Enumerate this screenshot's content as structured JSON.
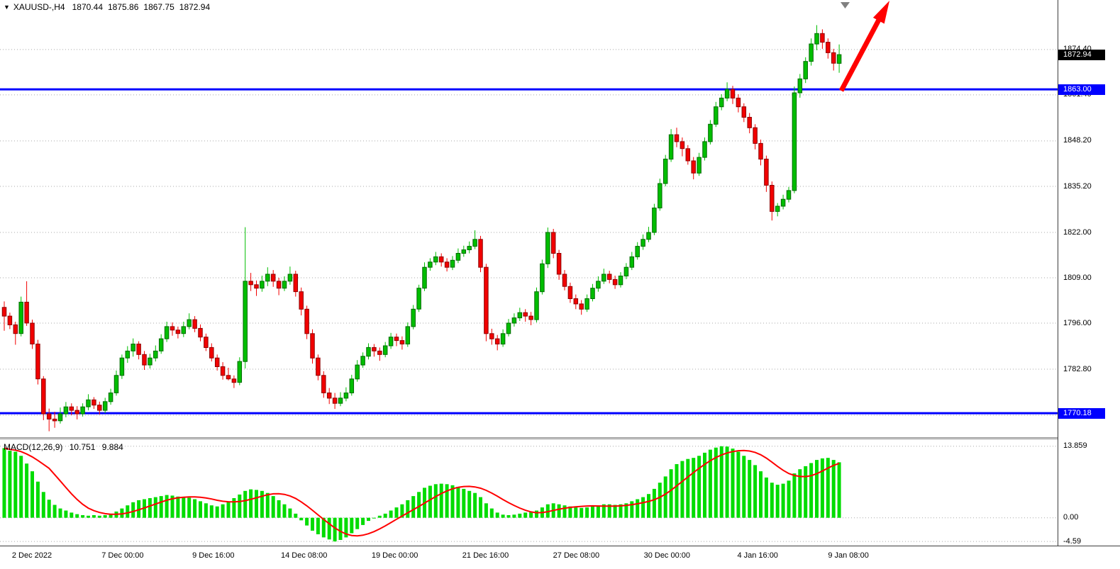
{
  "header": {
    "collapse_icon": "▼",
    "symbol_period": "XAUUSD-,H4",
    "open": "1870.44",
    "high": "1875.86",
    "low": "1867.75",
    "close": "1872.94"
  },
  "colors": {
    "bull": "#00BE00",
    "bull_border": "#006A00",
    "bear": "#F20000",
    "bear_border": "#8E0000",
    "level_line": "#0000FF",
    "current_badge": "#000000",
    "grid": "#A8A8A8",
    "macd": "#00DC00",
    "signal": "#FF0000",
    "arrow": "#FF0000"
  },
  "chart_data": [
    {
      "type": "candlestick",
      "symbol": "XAUUSD-",
      "timeframe": "H4",
      "current": {
        "open": 1870.44,
        "high": 1875.86,
        "low": 1867.75,
        "close": 1872.94
      },
      "hlines": [
        {
          "price": 1863.0
        },
        {
          "price": 1770.18
        }
      ],
      "y_axis": {
        "top": 1888.6,
        "bottom": 1763.3,
        "gridlines": [
          1874.4,
          1861.4,
          1848.2,
          1835.2,
          1822.0,
          1809.0,
          1796.0,
          1782.8,
          1769.6
        ]
      },
      "x_labels": [
        "2 Dec 2022",
        "7 Dec 00:00",
        "9 Dec 16:00",
        "14 Dec 08:00",
        "19 Dec 00:00",
        "21 Dec 16:00",
        "27 Dec 08:00",
        "30 Dec 00:00",
        "4 Jan 16:00",
        "9 Jan 08:00"
      ],
      "ohlc": [
        [
          1800.5,
          1802.2,
          1793.8,
          1798.0
        ],
        [
          1798.0,
          1799.0,
          1794.3,
          1795.5
        ],
        [
          1795.5,
          1796.4,
          1789.8,
          1793.0
        ],
        [
          1793.0,
          1803.6,
          1792.2,
          1802.0
        ],
        [
          1802.0,
          1808.0,
          1795.2,
          1796.0
        ],
        [
          1796.0,
          1797.0,
          1788.6,
          1790.0
        ],
        [
          1790.0,
          1791.2,
          1778.4,
          1780.0
        ],
        [
          1780.0,
          1780.8,
          1768.2,
          1770.0
        ],
        [
          1770.0,
          1771.5,
          1765.0,
          1768.5
        ],
        [
          1768.5,
          1770.6,
          1766.0,
          1768.0
        ],
        [
          1768.0,
          1771.8,
          1767.2,
          1770.0
        ],
        [
          1770.0,
          1773.4,
          1769.0,
          1772.0
        ],
        [
          1772.0,
          1773.0,
          1769.6,
          1771.0
        ],
        [
          1771.0,
          1772.2,
          1768.4,
          1770.0
        ],
        [
          1770.0,
          1773.0,
          1769.2,
          1772.0
        ],
        [
          1772.0,
          1775.6,
          1771.0,
          1774.0
        ],
        [
          1774.0,
          1774.8,
          1771.4,
          1772.5
        ],
        [
          1772.5,
          1773.5,
          1769.8,
          1771.0
        ],
        [
          1771.0,
          1774.6,
          1770.2,
          1773.5
        ],
        [
          1773.5,
          1777.2,
          1772.6,
          1776.0
        ],
        [
          1776.0,
          1782.4,
          1775.2,
          1781.0
        ],
        [
          1781.0,
          1787.0,
          1780.0,
          1786.0
        ],
        [
          1786.0,
          1789.4,
          1784.6,
          1788.0
        ],
        [
          1788.0,
          1791.6,
          1786.4,
          1790.0
        ],
        [
          1790.0,
          1790.8,
          1785.6,
          1787.0
        ],
        [
          1787.0,
          1788.0,
          1782.6,
          1784.0
        ],
        [
          1784.0,
          1787.2,
          1783.0,
          1786.0
        ],
        [
          1786.0,
          1789.6,
          1785.0,
          1788.0
        ],
        [
          1788.0,
          1792.8,
          1787.2,
          1791.5
        ],
        [
          1791.5,
          1796.4,
          1790.6,
          1795.0
        ],
        [
          1795.0,
          1796.2,
          1792.4,
          1794.0
        ],
        [
          1794.0,
          1795.0,
          1791.6,
          1793.0
        ],
        [
          1793.0,
          1796.4,
          1792.0,
          1795.0
        ],
        [
          1795.0,
          1798.8,
          1794.2,
          1797.0
        ],
        [
          1797.0,
          1798.0,
          1793.4,
          1794.5
        ],
        [
          1794.5,
          1795.6,
          1790.8,
          1792.0
        ],
        [
          1792.0,
          1793.0,
          1788.0,
          1789.0
        ],
        [
          1789.0,
          1790.2,
          1785.0,
          1786.0
        ],
        [
          1786.0,
          1787.0,
          1782.4,
          1783.5
        ],
        [
          1783.5,
          1784.8,
          1779.8,
          1781.0
        ],
        [
          1781.0,
          1783.2,
          1779.6,
          1780.0
        ],
        [
          1780.0,
          1781.0,
          1777.4,
          1779.0
        ],
        [
          1779.0,
          1786.2,
          1778.2,
          1785.0
        ],
        [
          1785.0,
          1823.5,
          1783.0,
          1808.0
        ],
        [
          1808.0,
          1810.4,
          1805.2,
          1807.0
        ],
        [
          1807.0,
          1808.2,
          1803.8,
          1806.0
        ],
        [
          1806.0,
          1809.6,
          1805.0,
          1808.0
        ],
        [
          1808.0,
          1812.0,
          1806.6,
          1810.0
        ],
        [
          1810.0,
          1811.2,
          1806.4,
          1808.0
        ],
        [
          1808.0,
          1809.0,
          1804.0,
          1806.0
        ],
        [
          1806.0,
          1809.4,
          1805.2,
          1808.0
        ],
        [
          1808.0,
          1812.2,
          1807.0,
          1810.0
        ],
        [
          1810.0,
          1811.0,
          1803.6,
          1805.0
        ],
        [
          1805.0,
          1806.2,
          1798.2,
          1800.0
        ],
        [
          1800.0,
          1801.0,
          1791.4,
          1793.0
        ],
        [
          1793.0,
          1794.2,
          1784.4,
          1786.0
        ],
        [
          1786.0,
          1787.0,
          1779.6,
          1781.0
        ],
        [
          1781.0,
          1782.2,
          1774.6,
          1776.0
        ],
        [
          1776.0,
          1777.4,
          1772.8,
          1774.5
        ],
        [
          1774.5,
          1776.0,
          1771.4,
          1773.0
        ],
        [
          1773.0,
          1776.2,
          1772.2,
          1774.5
        ],
        [
          1774.5,
          1777.6,
          1773.6,
          1776.0
        ],
        [
          1776.0,
          1781.2,
          1775.2,
          1780.0
        ],
        [
          1780.0,
          1785.4,
          1779.2,
          1784.0
        ],
        [
          1784.0,
          1787.6,
          1783.2,
          1786.5
        ],
        [
          1786.5,
          1790.2,
          1785.6,
          1789.0
        ],
        [
          1789.0,
          1790.0,
          1786.4,
          1788.0
        ],
        [
          1788.0,
          1789.0,
          1785.2,
          1787.0
        ],
        [
          1787.0,
          1790.6,
          1786.2,
          1789.5
        ],
        [
          1789.5,
          1793.2,
          1788.6,
          1792.0
        ],
        [
          1792.0,
          1793.0,
          1789.4,
          1791.0
        ],
        [
          1791.0,
          1792.2,
          1788.4,
          1790.0
        ],
        [
          1790.0,
          1796.2,
          1789.2,
          1795.0
        ],
        [
          1795.0,
          1801.2,
          1794.2,
          1800.0
        ],
        [
          1800.0,
          1807.0,
          1799.2,
          1806.0
        ],
        [
          1806.0,
          1813.4,
          1805.2,
          1812.0
        ],
        [
          1812.0,
          1814.6,
          1811.0,
          1813.5
        ],
        [
          1813.5,
          1816.4,
          1812.6,
          1815.0
        ],
        [
          1815.0,
          1816.0,
          1812.2,
          1813.5
        ],
        [
          1813.5,
          1814.6,
          1810.8,
          1812.0
        ],
        [
          1812.0,
          1815.2,
          1811.2,
          1814.0
        ],
        [
          1814.0,
          1817.4,
          1813.2,
          1816.0
        ],
        [
          1816.0,
          1818.2,
          1815.0,
          1817.0
        ],
        [
          1817.0,
          1819.4,
          1816.0,
          1818.0
        ],
        [
          1818.0,
          1822.6,
          1817.2,
          1820.0
        ],
        [
          1820.0,
          1821.0,
          1810.6,
          1812.0
        ],
        [
          1812.0,
          1813.0,
          1790.8,
          1793.0
        ],
        [
          1793.0,
          1794.4,
          1789.8,
          1791.5
        ],
        [
          1791.5,
          1792.6,
          1788.2,
          1790.0
        ],
        [
          1790.0,
          1794.2,
          1789.2,
          1793.0
        ],
        [
          1793.0,
          1797.2,
          1792.2,
          1796.0
        ],
        [
          1796.0,
          1798.8,
          1795.0,
          1797.5
        ],
        [
          1797.5,
          1800.4,
          1796.6,
          1799.0
        ],
        [
          1799.0,
          1800.0,
          1796.4,
          1798.0
        ],
        [
          1798.0,
          1799.2,
          1795.4,
          1797.0
        ],
        [
          1797.0,
          1806.2,
          1796.2,
          1805.0
        ],
        [
          1805.0,
          1814.2,
          1804.2,
          1813.0
        ],
        [
          1813.0,
          1823.4,
          1811.8,
          1822.0
        ],
        [
          1822.0,
          1823.0,
          1814.6,
          1816.0
        ],
        [
          1816.0,
          1817.0,
          1808.4,
          1810.0
        ],
        [
          1810.0,
          1811.2,
          1805.4,
          1806.5
        ],
        [
          1806.5,
          1807.6,
          1801.8,
          1803.0
        ],
        [
          1803.0,
          1804.2,
          1800.0,
          1801.5
        ],
        [
          1801.5,
          1802.6,
          1798.4,
          1800.0
        ],
        [
          1800.0,
          1804.2,
          1799.2,
          1803.0
        ],
        [
          1803.0,
          1807.2,
          1802.2,
          1806.0
        ],
        [
          1806.0,
          1809.4,
          1805.0,
          1808.0
        ],
        [
          1808.0,
          1811.6,
          1807.2,
          1810.0
        ],
        [
          1810.0,
          1811.0,
          1807.4,
          1808.5
        ],
        [
          1808.5,
          1809.6,
          1805.8,
          1807.0
        ],
        [
          1807.0,
          1810.6,
          1806.2,
          1809.5
        ],
        [
          1809.5,
          1813.2,
          1808.6,
          1812.0
        ],
        [
          1812.0,
          1816.4,
          1811.2,
          1815.0
        ],
        [
          1815.0,
          1819.2,
          1814.2,
          1818.0
        ],
        [
          1818.0,
          1821.4,
          1817.0,
          1820.0
        ],
        [
          1820.0,
          1823.6,
          1819.2,
          1822.0
        ],
        [
          1822.0,
          1830.2,
          1821.2,
          1829.0
        ],
        [
          1829.0,
          1837.4,
          1828.2,
          1836.0
        ],
        [
          1836.0,
          1844.2,
          1835.2,
          1843.0
        ],
        [
          1843.0,
          1851.6,
          1842.2,
          1850.0
        ],
        [
          1850.0,
          1852.0,
          1846.4,
          1848.0
        ],
        [
          1848.0,
          1849.2,
          1843.8,
          1846.0
        ],
        [
          1846.0,
          1847.0,
          1841.4,
          1842.5
        ],
        [
          1842.5,
          1843.6,
          1837.2,
          1839.0
        ],
        [
          1839.0,
          1844.8,
          1838.2,
          1843.5
        ],
        [
          1843.5,
          1849.2,
          1842.6,
          1848.0
        ],
        [
          1848.0,
          1854.2,
          1847.2,
          1853.0
        ],
        [
          1853.0,
          1859.4,
          1852.2,
          1858.0
        ],
        [
          1858.0,
          1861.6,
          1857.0,
          1860.5
        ],
        [
          1860.5,
          1865.0,
          1859.6,
          1863.0
        ],
        [
          1863.0,
          1864.0,
          1858.8,
          1860.5
        ],
        [
          1860.5,
          1861.6,
          1856.4,
          1858.0
        ],
        [
          1858.0,
          1859.0,
          1853.6,
          1855.0
        ],
        [
          1855.0,
          1856.2,
          1850.4,
          1852.0
        ],
        [
          1852.0,
          1853.0,
          1845.8,
          1847.5
        ],
        [
          1847.5,
          1848.6,
          1841.2,
          1843.0
        ],
        [
          1843.0,
          1844.0,
          1833.6,
          1835.5
        ],
        [
          1835.5,
          1836.6,
          1825.4,
          1828.0
        ],
        [
          1828.0,
          1830.4,
          1826.6,
          1829.5
        ],
        [
          1829.5,
          1832.8,
          1828.6,
          1831.5
        ],
        [
          1831.5,
          1835.0,
          1830.6,
          1834.0
        ],
        [
          1834.0,
          1863.8,
          1833.2,
          1862.0
        ],
        [
          1862.0,
          1867.4,
          1860.6,
          1866.0
        ],
        [
          1866.0,
          1872.2,
          1864.8,
          1871.0
        ],
        [
          1871.0,
          1877.6,
          1869.8,
          1876.0
        ],
        [
          1876.0,
          1881.4,
          1874.2,
          1879.0
        ],
        [
          1879.0,
          1880.2,
          1874.6,
          1876.5
        ],
        [
          1876.5,
          1877.6,
          1871.8,
          1873.5
        ],
        [
          1873.5,
          1874.6,
          1868.4,
          1870.5
        ],
        [
          1870.44,
          1875.86,
          1867.75,
          1872.94
        ]
      ]
    },
    {
      "type": "macd",
      "name": "MACD(12,26,9)",
      "value": "10.751",
      "signal_value": "9.884",
      "y_axis": {
        "top": 15.2,
        "bottom": -5.4
      },
      "y_ticks": [
        13.859,
        0,
        -4.59
      ],
      "y_tick_labels": [
        "13.859",
        "0.00",
        "-4.59"
      ],
      "values": [
        13.5,
        13.0,
        12.8,
        12.0,
        10.5,
        9.0,
        7.0,
        5.0,
        3.5,
        2.5,
        1.8,
        1.4,
        1.0,
        0.7,
        0.5,
        0.4,
        0.5,
        0.4,
        0.5,
        0.8,
        1.2,
        1.8,
        2.4,
        3.0,
        3.4,
        3.6,
        3.8,
        4.0,
        4.2,
        4.4,
        4.3,
        4.1,
        4.0,
        3.9,
        3.6,
        3.2,
        2.8,
        2.4,
        2.2,
        2.6,
        3.2,
        3.8,
        4.5,
        5.2,
        5.5,
        5.4,
        5.2,
        4.8,
        4.2,
        3.4,
        2.6,
        1.8,
        0.8,
        -0.5,
        -1.5,
        -2.5,
        -3.2,
        -3.8,
        -4.2,
        -4.59,
        -4.3,
        -3.8,
        -3.0,
        -2.2,
        -1.4,
        -0.6,
        0.0,
        0.4,
        0.8,
        1.4,
        2.0,
        2.6,
        3.4,
        4.2,
        5.0,
        5.8,
        6.2,
        6.5,
        6.6,
        6.5,
        6.3,
        6.0,
        5.6,
        5.2,
        4.8,
        4.0,
        2.8,
        1.8,
        1.0,
        0.6,
        0.5,
        0.6,
        0.8,
        1.0,
        1.1,
        1.4,
        2.0,
        2.6,
        2.8,
        2.6,
        2.4,
        2.2,
        2.0,
        1.9,
        2.0,
        2.2,
        2.4,
        2.6,
        2.6,
        2.5,
        2.6,
        2.8,
        3.2,
        3.6,
        4.0,
        4.6,
        5.6,
        6.8,
        8.0,
        9.4,
        10.4,
        11.0,
        11.4,
        11.6,
        12.0,
        12.6,
        13.2,
        13.6,
        13.859,
        13.8,
        13.4,
        12.8,
        12.0,
        11.2,
        10.2,
        9.0,
        7.8,
        6.8,
        6.4,
        6.6,
        7.2,
        8.6,
        9.4,
        10.0,
        10.6,
        11.2,
        11.5,
        11.6,
        11.2,
        10.751
      ]
    }
  ]
}
